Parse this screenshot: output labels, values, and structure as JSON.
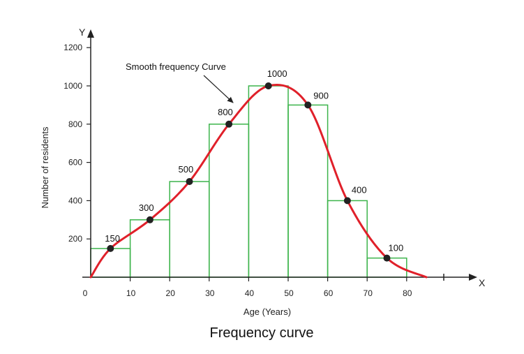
{
  "chart_data": {
    "type": "bar",
    "title": "Frequency curve",
    "xlabel": "Age (Years)",
    "ylabel": "Number of residents",
    "x_axis_letter": "X",
    "y_axis_letter": "Y",
    "x_ticks": [
      0,
      10,
      20,
      30,
      40,
      50,
      60,
      70,
      80
    ],
    "y_ticks": [
      200,
      400,
      600,
      800,
      1000,
      1200
    ],
    "xlim": [
      0,
      90
    ],
    "ylim": [
      0,
      1300
    ],
    "bins": [
      {
        "x0": 0,
        "x1": 10,
        "value": 150
      },
      {
        "x0": 10,
        "x1": 20,
        "value": 300
      },
      {
        "x0": 20,
        "x1": 30,
        "value": 500
      },
      {
        "x0": 30,
        "x1": 40,
        "value": 800
      },
      {
        "x0": 40,
        "x1": 50,
        "value": 1000
      },
      {
        "x0": 50,
        "x1": 60,
        "value": 900
      },
      {
        "x0": 60,
        "x1": 70,
        "value": 400
      },
      {
        "x0": 70,
        "x1": 80,
        "value": 100
      }
    ],
    "data_labels": [
      "150",
      "300",
      "500",
      "800",
      "1000",
      "900",
      "400",
      "100"
    ],
    "series": [
      {
        "type": "line",
        "midpoints": [
          5,
          15,
          25,
          35,
          45,
          55,
          65,
          75
        ],
        "values": [
          150,
          300,
          500,
          800,
          1000,
          900,
          400,
          100
        ],
        "curve_ends": [
          [
            0,
            0
          ],
          [
            85,
            0
          ]
        ]
      }
    ],
    "annotation": "Smooth frequency Curve",
    "colors": {
      "bars": "#3cb44b",
      "curve": "#e0202a",
      "points": "#222222",
      "axis": "#222222"
    },
    "grid": false
  }
}
